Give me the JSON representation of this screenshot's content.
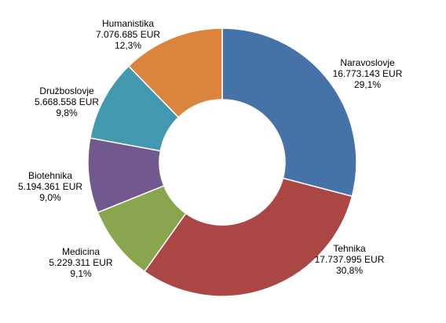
{
  "chart_data": {
    "type": "pie",
    "subtype": "donut",
    "title": "",
    "slices": [
      {
        "name": "Naravoslovje",
        "value": 16773143,
        "value_label": "16.773.143 EUR",
        "percent": 29.1,
        "percent_label": "29,1%",
        "color": "#4572A7"
      },
      {
        "name": "Tehnika",
        "value": 17737995,
        "value_label": "17.737.995 EUR",
        "percent": 30.8,
        "percent_label": "30,8%",
        "color": "#AA4643"
      },
      {
        "name": "Medicina",
        "value": 5229311,
        "value_label": "5.229.311 EUR",
        "percent": 9.1,
        "percent_label": "9,1%",
        "color": "#89A54E"
      },
      {
        "name": "Biotehnika",
        "value": 5194361,
        "value_label": "5.194.361 EUR",
        "percent": 9.0,
        "percent_label": "9,0%",
        "color": "#71588F"
      },
      {
        "name": "Družboslovje",
        "value": 5668558,
        "value_label": "5.668.558 EUR",
        "percent": 9.8,
        "percent_label": "9,8%",
        "color": "#4198AF"
      },
      {
        "name": "Humanistika",
        "value": 7076685,
        "value_label": "7.076.685 EUR",
        "percent": 12.3,
        "percent_label": "12,3%",
        "color": "#DB843D"
      }
    ],
    "start": "12 o'clock",
    "direction": "clockwise",
    "legend": "none",
    "labels": "outside"
  }
}
